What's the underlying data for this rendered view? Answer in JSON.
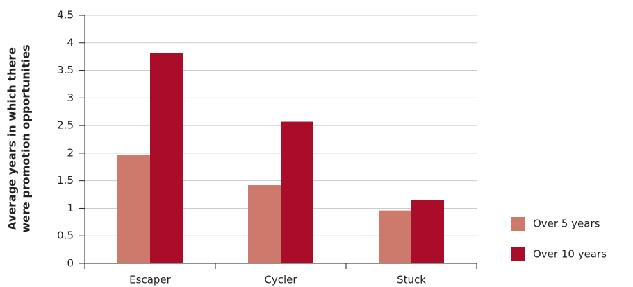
{
  "chart_data": {
    "type": "bar",
    "y_label": [
      "Average years in which there",
      "were promotion opportunities"
    ],
    "categories": [
      "Escaper",
      "Cycler",
      "Stuck"
    ],
    "series": [
      {
        "name": "Over 5 years",
        "color": "#cd7a6d",
        "values": [
          1.97,
          1.42,
          0.96
        ]
      },
      {
        "name": "Over 10 years",
        "color": "#a90d2a",
        "values": [
          3.82,
          2.57,
          1.15
        ]
      }
    ],
    "ylim": [
      0,
      4.5
    ],
    "yticks": [
      0,
      0.5,
      1,
      1.5,
      2,
      2.5,
      3,
      3.5,
      4,
      4.5
    ],
    "grid": true,
    "legend": "bottom-right"
  }
}
